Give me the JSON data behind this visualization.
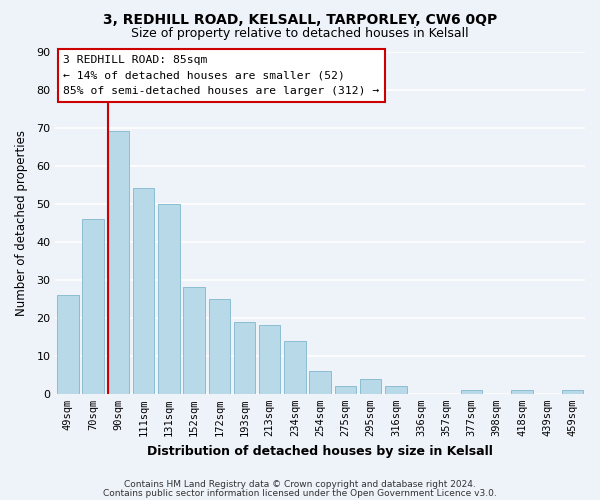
{
  "title": "3, REDHILL ROAD, KELSALL, TARPORLEY, CW6 0QP",
  "subtitle": "Size of property relative to detached houses in Kelsall",
  "xlabel": "Distribution of detached houses by size in Kelsall",
  "ylabel": "Number of detached properties",
  "bar_color": "#b8d9e8",
  "bar_edge_color": "#8bbdd4",
  "categories": [
    "49sqm",
    "70sqm",
    "90sqm",
    "111sqm",
    "131sqm",
    "152sqm",
    "172sqm",
    "193sqm",
    "213sqm",
    "234sqm",
    "254sqm",
    "275sqm",
    "295sqm",
    "316sqm",
    "336sqm",
    "357sqm",
    "377sqm",
    "398sqm",
    "418sqm",
    "439sqm",
    "459sqm"
  ],
  "values": [
    26,
    46,
    69,
    54,
    50,
    28,
    25,
    19,
    18,
    14,
    6,
    2,
    4,
    2,
    0,
    0,
    1,
    0,
    1,
    0,
    1
  ],
  "ylim": [
    0,
    90
  ],
  "yticks": [
    0,
    10,
    20,
    30,
    40,
    50,
    60,
    70,
    80,
    90
  ],
  "redline_category_idx": 2,
  "annotation_title": "3 REDHILL ROAD: 85sqm",
  "annotation_line1": "← 14% of detached houses are smaller (52)",
  "annotation_line2": "85% of semi-detached houses are larger (312) →",
  "footer1": "Contains HM Land Registry data © Crown copyright and database right 2024.",
  "footer2": "Contains public sector information licensed under the Open Government Licence v3.0.",
  "bg_color": "#eef2f9",
  "plot_bg_color": "#eef2f9",
  "grid_color": "#ffffff",
  "annotation_box_color": "#ffffff",
  "annotation_box_edge": "#cc0000",
  "redline_color": "#cc0000",
  "title_fontsize": 10,
  "subtitle_fontsize": 9
}
